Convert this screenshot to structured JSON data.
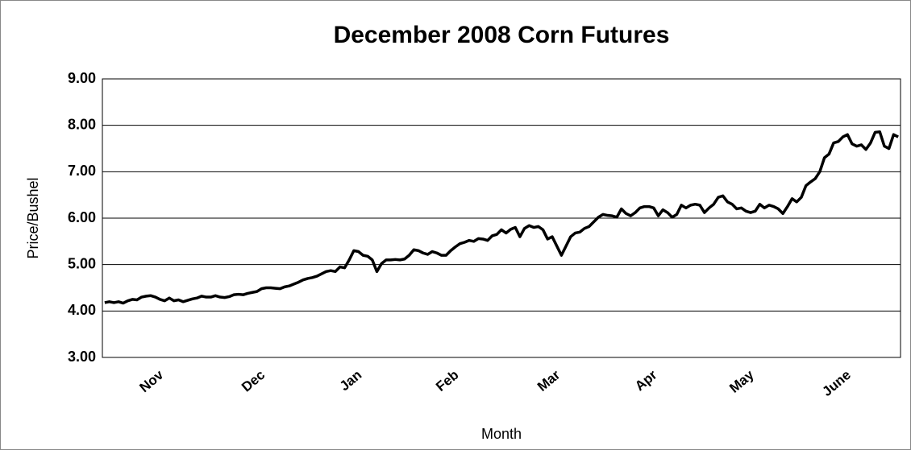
{
  "chart_data": {
    "type": "line",
    "title": "December 2008 Corn Futures",
    "x_label": "Month",
    "y_label": "Price/Bushel",
    "color": "#000000",
    "grid": true,
    "ylim": [
      3,
      9
    ],
    "yticks": [
      {
        "value": 3,
        "label": "3.00"
      },
      {
        "value": 4,
        "label": "4.00"
      },
      {
        "value": 5,
        "label": "5.00"
      },
      {
        "value": 6,
        "label": "6.00"
      },
      {
        "value": 7,
        "label": "7.00"
      },
      {
        "value": 8,
        "label": "8.00"
      },
      {
        "value": 9,
        "label": "9.00"
      }
    ],
    "categories": [
      null,
      null,
      null,
      null,
      null,
      null,
      null,
      null,
      null,
      null,
      null,
      "Nov",
      null,
      null,
      null,
      null,
      null,
      null,
      null,
      null,
      null,
      null,
      null,
      null,
      null,
      null,
      null,
      null,
      null,
      null,
      null,
      null,
      null,
      "Dec",
      null,
      null,
      null,
      null,
      null,
      null,
      null,
      null,
      null,
      null,
      null,
      null,
      null,
      null,
      null,
      null,
      null,
      null,
      null,
      null,
      "Jan",
      null,
      null,
      null,
      null,
      null,
      null,
      null,
      null,
      null,
      null,
      null,
      null,
      null,
      null,
      null,
      null,
      null,
      null,
      null,
      null,
      "Feb",
      null,
      null,
      null,
      null,
      null,
      null,
      null,
      null,
      null,
      null,
      null,
      null,
      null,
      null,
      null,
      null,
      null,
      null,
      null,
      null,
      null,
      "Mar",
      null,
      null,
      null,
      null,
      null,
      null,
      null,
      null,
      null,
      null,
      null,
      null,
      null,
      null,
      null,
      null,
      null,
      null,
      null,
      null,
      "Apr",
      null,
      null,
      null,
      null,
      null,
      null,
      null,
      null,
      null,
      null,
      null,
      null,
      null,
      null,
      null,
      null,
      null,
      null,
      null,
      null,
      "May",
      null,
      null,
      null,
      null,
      null,
      null,
      null,
      null,
      null,
      null,
      null,
      null,
      null,
      null,
      null,
      null,
      null,
      null,
      null,
      null,
      "June",
      null,
      null,
      null,
      null,
      null,
      null,
      null,
      null,
      null,
      null,
      null,
      null
    ],
    "values": [
      4.18,
      4.2,
      4.18,
      4.2,
      4.17,
      4.22,
      4.25,
      4.24,
      4.3,
      4.32,
      4.33,
      4.3,
      4.25,
      4.22,
      4.28,
      4.22,
      4.24,
      4.2,
      4.23,
      4.26,
      4.28,
      4.32,
      4.3,
      4.3,
      4.33,
      4.3,
      4.29,
      4.31,
      4.35,
      4.36,
      4.35,
      4.38,
      4.4,
      4.42,
      4.48,
      4.5,
      4.5,
      4.49,
      4.48,
      4.52,
      4.54,
      4.58,
      4.62,
      4.67,
      4.7,
      4.72,
      4.75,
      4.8,
      4.85,
      4.87,
      4.85,
      4.95,
      4.93,
      5.1,
      5.3,
      5.28,
      5.2,
      5.18,
      5.1,
      4.85,
      5.02,
      5.1,
      5.1,
      5.11,
      5.1,
      5.12,
      5.2,
      5.32,
      5.3,
      5.25,
      5.22,
      5.28,
      5.25,
      5.2,
      5.2,
      5.3,
      5.38,
      5.45,
      5.48,
      5.52,
      5.5,
      5.56,
      5.55,
      5.52,
      5.62,
      5.65,
      5.75,
      5.68,
      5.76,
      5.8,
      5.6,
      5.78,
      5.84,
      5.8,
      5.82,
      5.75,
      5.55,
      5.6,
      5.4,
      5.2,
      5.4,
      5.6,
      5.68,
      5.7,
      5.78,
      5.82,
      5.92,
      6.02,
      6.08,
      6.06,
      6.05,
      6.02,
      6.2,
      6.1,
      6.05,
      6.12,
      6.22,
      6.25,
      6.25,
      6.22,
      6.05,
      6.18,
      6.12,
      6.02,
      6.08,
      6.28,
      6.22,
      6.28,
      6.3,
      6.28,
      6.12,
      6.22,
      6.3,
      6.45,
      6.48,
      6.35,
      6.3,
      6.2,
      6.22,
      6.15,
      6.12,
      6.15,
      6.3,
      6.22,
      6.28,
      6.25,
      6.2,
      6.1,
      6.25,
      6.42,
      6.35,
      6.45,
      6.7,
      6.78,
      6.85,
      7.0,
      7.3,
      7.38,
      7.62,
      7.65,
      7.75,
      7.8,
      7.6,
      7.55,
      7.58,
      7.48,
      7.62,
      7.85,
      7.86,
      7.55,
      7.5,
      7.8,
      7.75
    ]
  }
}
